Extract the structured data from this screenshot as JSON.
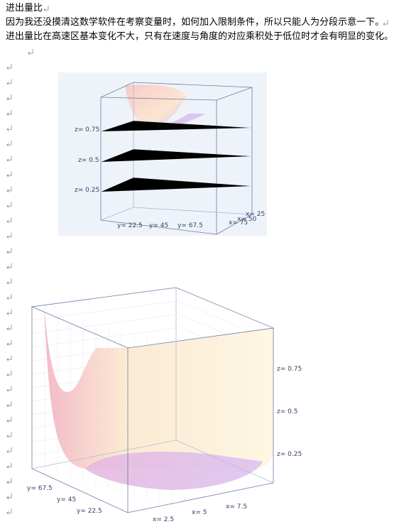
{
  "paragraphs": [
    "进出量比",
    "因为我还没摸清这数学软件在考察变量时，如何加入限制条件，所以只能人为分段示意一下。",
    "进出量比在高速区基本变化不大，只有在速度与角度的对应乘积处于低位时才会有明显的变化。"
  ],
  "figures": [
    {
      "labels": [
        "z= 0.75",
        "z= 0.5",
        "z= 0.25",
        "y= 22.5",
        "y= 45",
        "y= 67.5",
        "x= 25",
        "x= 50",
        "x= 75"
      ]
    },
    {
      "labels": [
        "z= 0.75",
        "z= 0.5",
        "z= 0.25",
        "y= 67.5",
        "y= 45",
        "y= 22.5",
        "x= 2.5",
        "x= 5",
        "x= 7.5"
      ]
    }
  ]
}
